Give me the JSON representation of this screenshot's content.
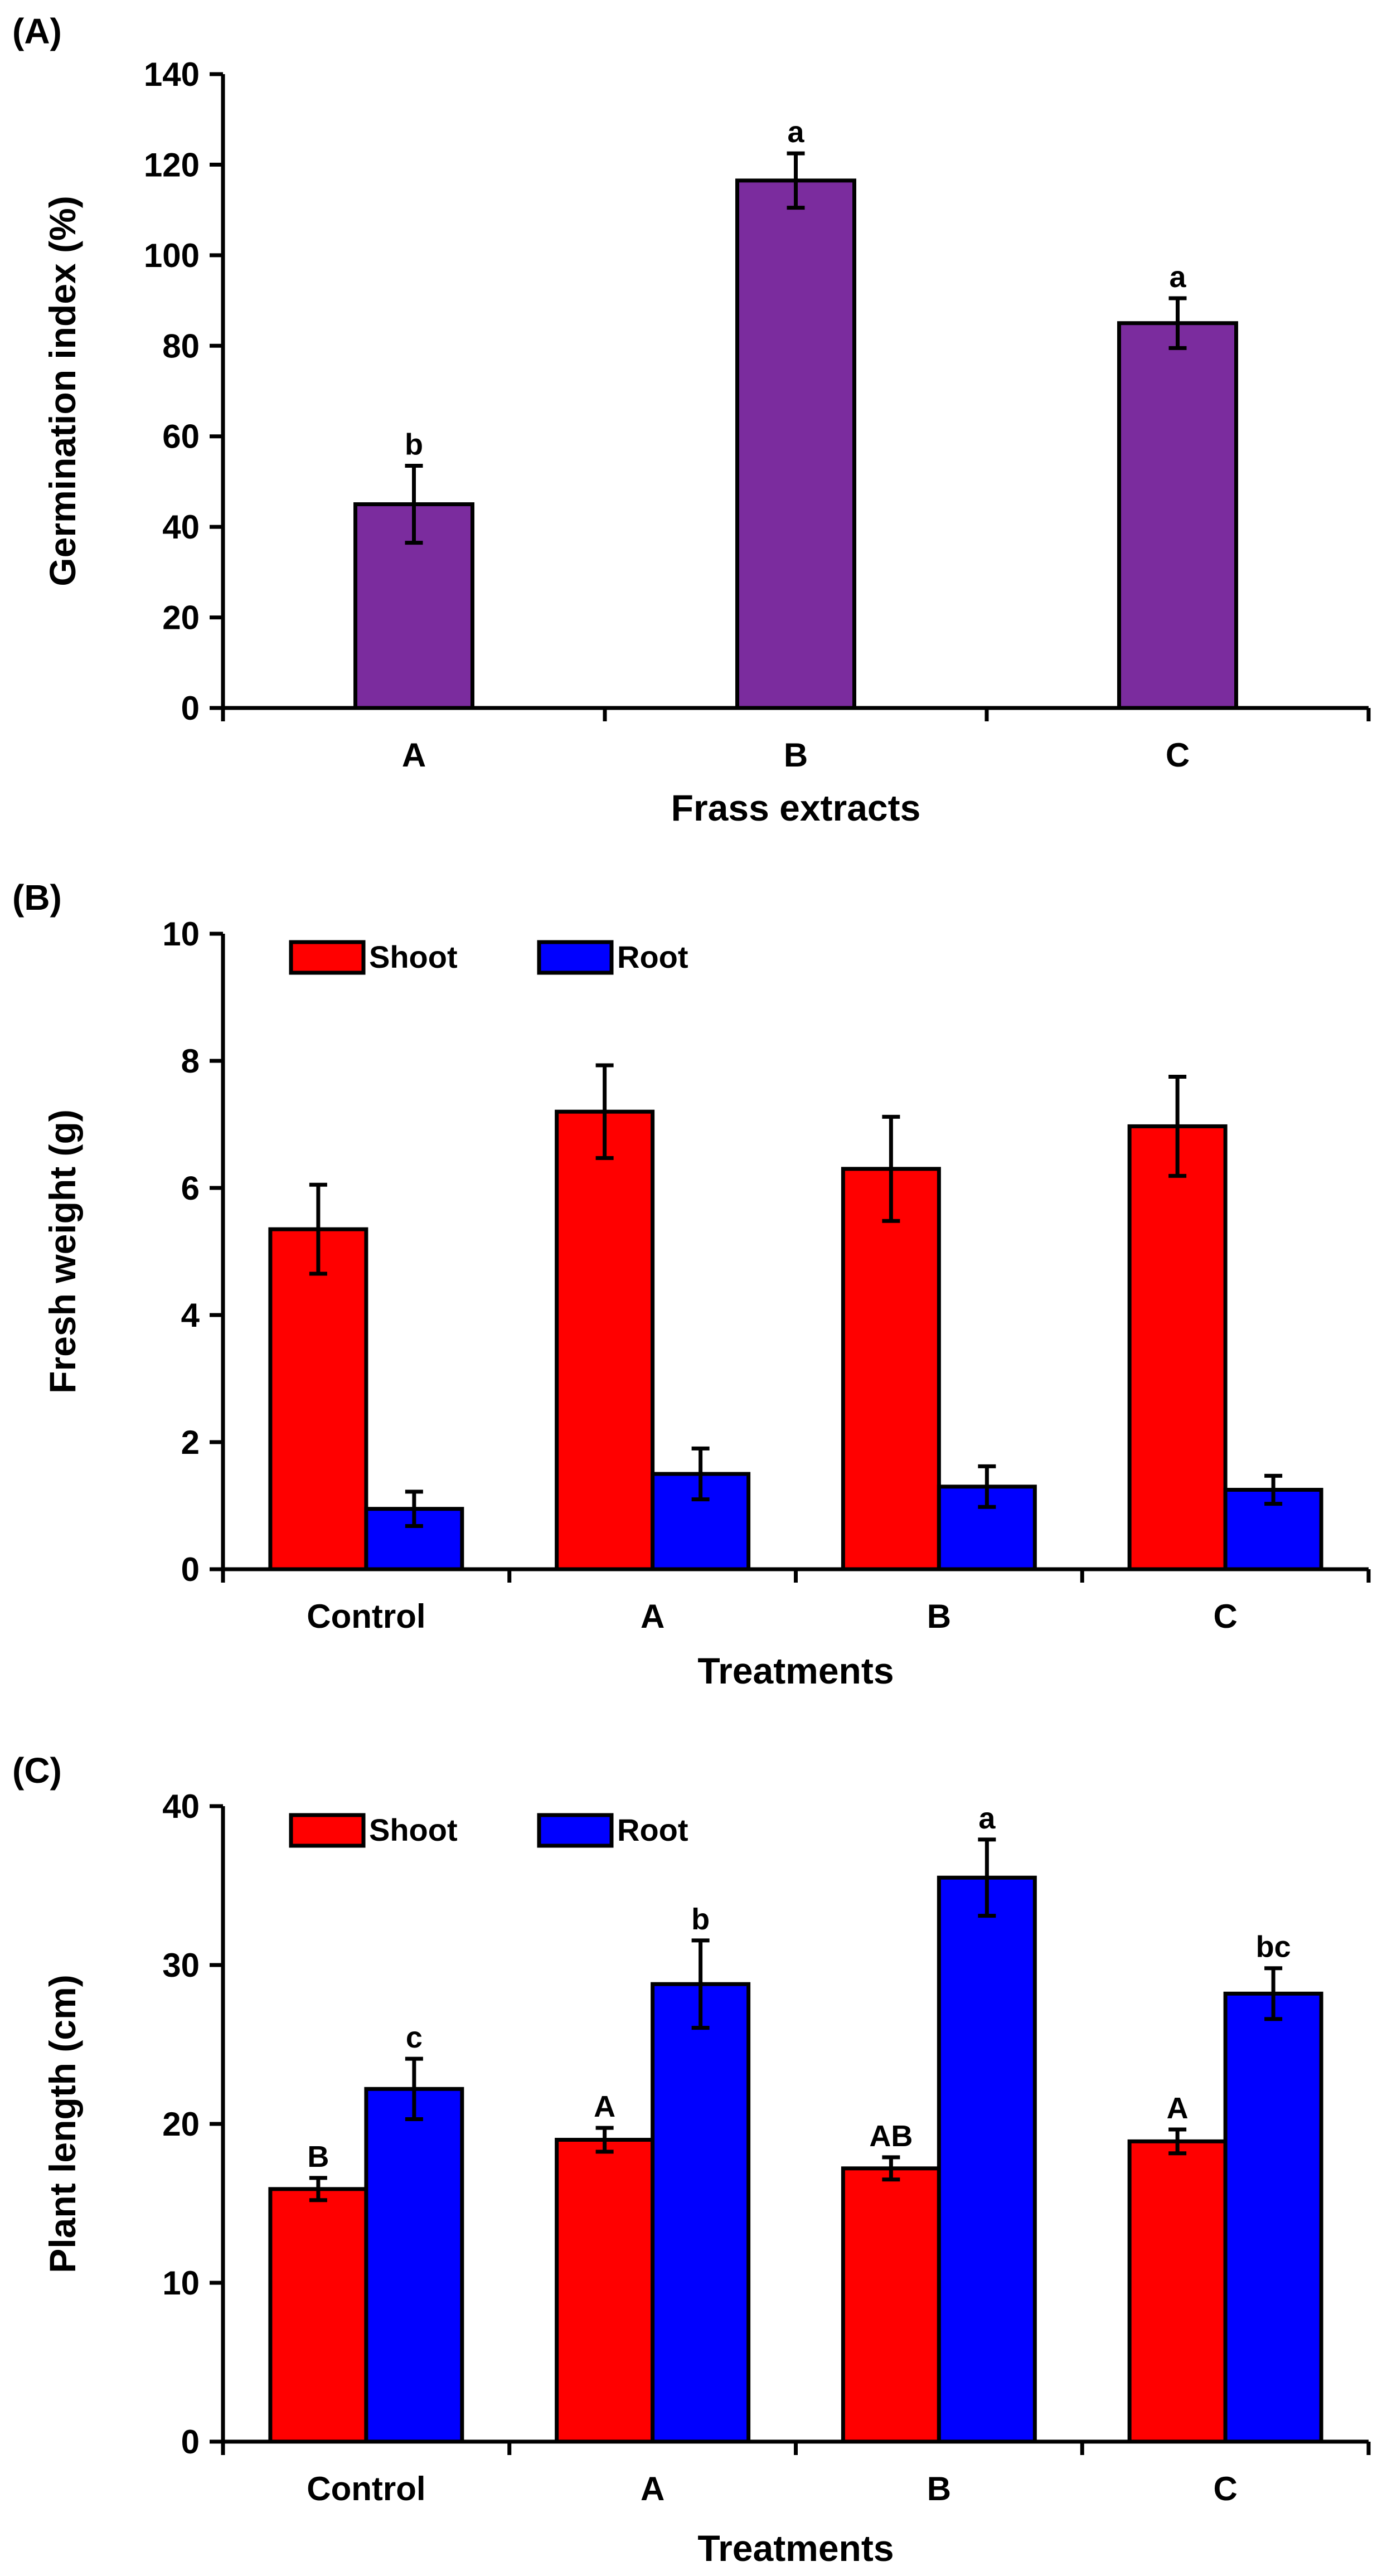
{
  "chart_data": [
    {
      "panel_label": "(A)",
      "type": "bar",
      "xlabel": "Frass extracts",
      "ylabel": "Germination index (%)",
      "ylim": [
        0,
        140
      ],
      "yticks": [
        "0",
        "20",
        "40",
        "60",
        "80",
        "100",
        "120",
        "140"
      ],
      "categories": [
        "A",
        "B",
        "C"
      ],
      "series": [
        {
          "name": "Germination index",
          "color": "#7B2C9E",
          "values": [
            45,
            116.5,
            85
          ],
          "errors": [
            8.5,
            6,
            5.5
          ],
          "letters": [
            "b",
            "a",
            "a"
          ]
        }
      ]
    },
    {
      "panel_label": "(B)",
      "type": "bar",
      "xlabel": "Treatments",
      "ylabel": "Fresh weight (g)",
      "ylim": [
        0,
        10
      ],
      "yticks": [
        "0",
        "2",
        "4",
        "6",
        "8",
        "10"
      ],
      "categories": [
        "Control",
        "A",
        "B",
        "C"
      ],
      "legend": [
        "Shoot",
        "Root"
      ],
      "series": [
        {
          "name": "Shoot",
          "color": "#FF0000",
          "values": [
            5.35,
            7.2,
            6.3,
            6.97
          ],
          "errors": [
            0.7,
            0.73,
            0.82,
            0.78
          ],
          "letters": [
            "",
            "",
            "",
            ""
          ]
        },
        {
          "name": "Root",
          "color": "#0000FF",
          "values": [
            0.95,
            1.5,
            1.3,
            1.25
          ],
          "errors": [
            0.27,
            0.4,
            0.32,
            0.22
          ],
          "letters": [
            "",
            "",
            "",
            ""
          ]
        }
      ]
    },
    {
      "panel_label": "(C)",
      "type": "bar",
      "xlabel": "Treatments",
      "ylabel": "Plant length (cm)",
      "ylim": [
        0,
        40
      ],
      "yticks": [
        "0",
        "10",
        "20",
        "30",
        "40"
      ],
      "categories": [
        "Control",
        "A",
        "B",
        "C"
      ],
      "legend": [
        "Shoot",
        "Root"
      ],
      "series": [
        {
          "name": "Shoot",
          "color": "#FF0000",
          "values": [
            15.9,
            19,
            17.2,
            18.9
          ],
          "errors": [
            0.7,
            0.75,
            0.7,
            0.75
          ],
          "letters": [
            "B",
            "A",
            "AB",
            "A"
          ]
        },
        {
          "name": "Root",
          "color": "#0000FF",
          "values": [
            22.2,
            28.8,
            35.5,
            28.2
          ],
          "errors": [
            1.9,
            2.75,
            2.4,
            1.6
          ],
          "letters": [
            "c",
            "b",
            "a",
            "bc"
          ]
        }
      ]
    }
  ]
}
